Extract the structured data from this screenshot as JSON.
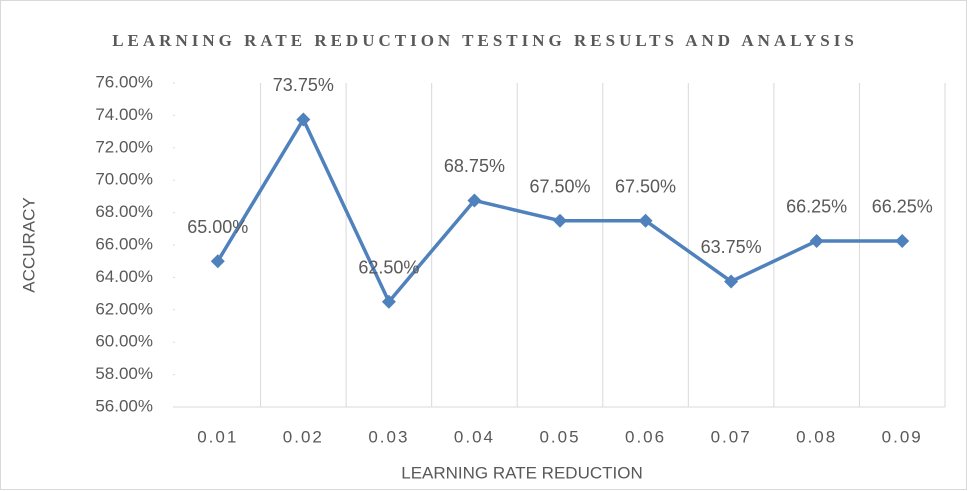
{
  "chart_data": {
    "type": "line",
    "title": "LEARNING RATE REDUCTION TESTING RESULTS AND ANALYSIS",
    "xlabel": "LEARNING RATE REDUCTION",
    "ylabel": "ACCURACY",
    "categories": [
      "0.01",
      "0.02",
      "0.03",
      "0.04",
      "0.05",
      "0.06",
      "0.07",
      "0.08",
      "0.09"
    ],
    "series": [
      {
        "name": "ACCURACY",
        "color": "#4f81bd",
        "values": [
          65,
          73.75,
          62.5,
          68.75,
          67.5,
          67.5,
          63.75,
          66.25,
          66.25
        ],
        "value_labels": [
          "65.00%",
          "73.75%",
          "62.50%",
          "68.75%",
          "67.50%",
          "67.50%",
          "63.75%",
          "66.25%",
          "66.25%"
        ]
      }
    ],
    "ylim": [
      56,
      76
    ],
    "yticks": [
      {
        "value": 56,
        "label": "56.00%"
      },
      {
        "value": 58,
        "label": "58.00%"
      },
      {
        "value": 60,
        "label": "60.00%"
      },
      {
        "value": 62,
        "label": "62.00%"
      },
      {
        "value": 64,
        "label": "64.00%"
      },
      {
        "value": 66,
        "label": "66.00%"
      },
      {
        "value": 68,
        "label": "68.00%"
      },
      {
        "value": 70,
        "label": "70.00%"
      },
      {
        "value": 72,
        "label": "72.00%"
      },
      {
        "value": 74,
        "label": "74.00%"
      },
      {
        "value": 76,
        "label": "76.00%"
      }
    ],
    "grid": true
  }
}
